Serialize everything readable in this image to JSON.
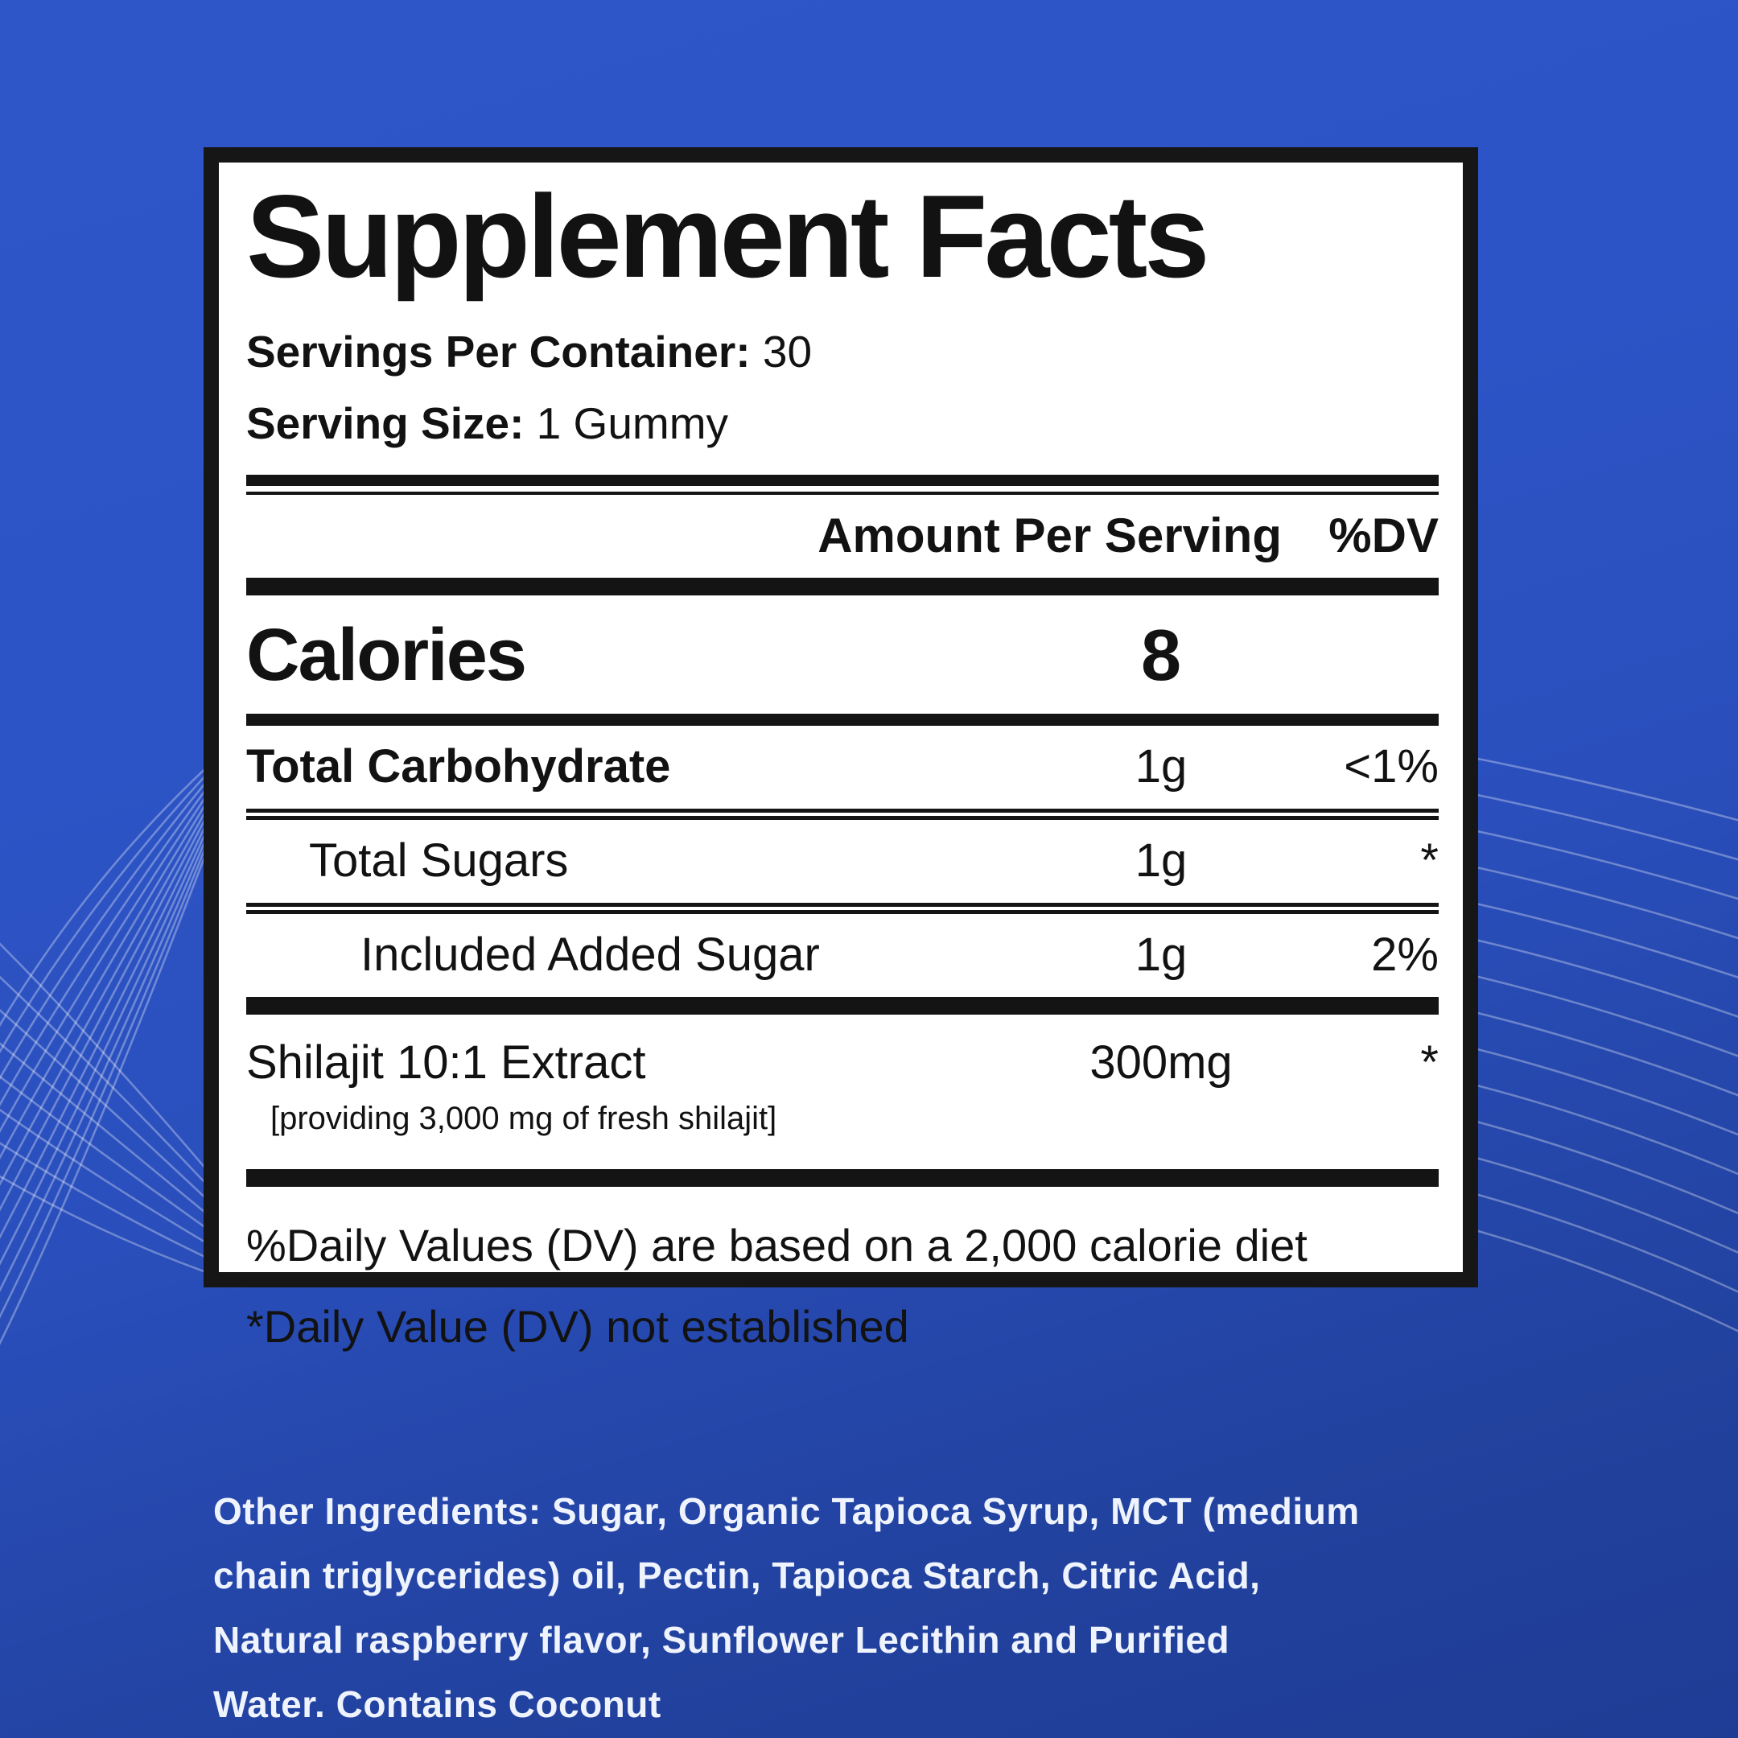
{
  "label": {
    "title": "Supplement Facts",
    "servings": {
      "key": "Servings Per Container:",
      "value": "30"
    },
    "serving_size": {
      "key": "Serving Size:",
      "value": "1 Gummy"
    },
    "header": {
      "amount": "Amount Per Serving",
      "dv": "%DV"
    },
    "calories": {
      "name": "Calories",
      "amount": "8"
    },
    "rows": [
      {
        "name": "Total Carbohydrate",
        "amount": "1g",
        "dv": "<1%"
      },
      {
        "name": "Total Sugars",
        "amount": "1g",
        "dv": "*"
      },
      {
        "name": "Included Added Sugar",
        "amount": "1g",
        "dv": "2%"
      }
    ],
    "extract": {
      "name": "Shilajit 10:1 Extract",
      "amount": "300mg",
      "dv": "*",
      "note": "[providing 3,000 mg of fresh shilajit]"
    },
    "footnotes": [
      "%Daily Values (DV) are based on a 2,000 calorie diet",
      "*Daily Value (DV) not established"
    ]
  },
  "other_ingredients": {
    "lines": [
      "Other Ingredients: Sugar, Organic Tapioca Syrup, MCT (medium",
      "chain triglycerides) oil, Pectin, Tapioca Starch, Citric Acid,",
      "Natural raspberry flavor, Sunflower Lecithin and Purified",
      "Water. Contains Coconut"
    ]
  },
  "colors": {
    "background_top": "#2e56c9",
    "background_bottom": "#1f3c95",
    "label_background": "#ffffff",
    "label_ink": "#161616",
    "ingredients_text": "#eef3fd",
    "wave_line": "rgba(255,255,255,0.32)"
  }
}
